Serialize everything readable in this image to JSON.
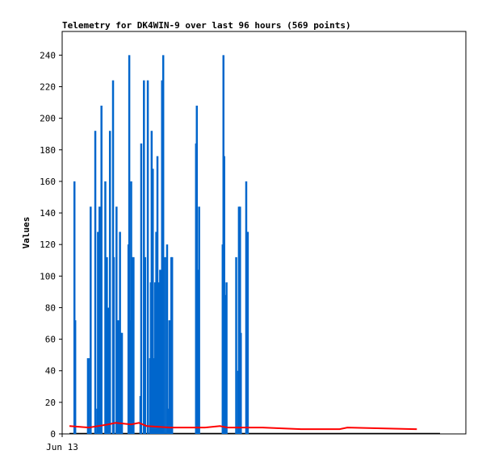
{
  "chart_data": {
    "type": "bar",
    "title": "Telemetry for DK4WIN-9 over last 96 hours (569 points)",
    "xlabel": "",
    "ylabel": "Values",
    "x_tick_labels": [
      "Jun 13"
    ],
    "x_range_hours": [
      0,
      96
    ],
    "ylim": [
      0,
      255
    ],
    "y_ticks": [
      0,
      20,
      40,
      60,
      80,
      100,
      120,
      140,
      160,
      180,
      200,
      220,
      240
    ],
    "grid": false,
    "legend": "none",
    "colors": {
      "spikes": "#0066cc",
      "baseline": "#ff0000",
      "zero_line": "#000000"
    },
    "series": [
      {
        "style": "bars",
        "x_hours": [
          1.3,
          1.5,
          4.8,
          5.3,
          5.5,
          6.7,
          7.2,
          7.4,
          7.6,
          7.8,
          8.0,
          8.3,
          9.3,
          9.5,
          9.7,
          9.9,
          10.1,
          10.5,
          11.3,
          11.5,
          12.2,
          12.6,
          13.1,
          13.4,
          13.6,
          15.3,
          15.5,
          15.7,
          16.0,
          16.4,
          16.6,
          18.4,
          18.6,
          19.3,
          19.6,
          20.3,
          20.9,
          21.1,
          21.3,
          21.6,
          22.0,
          22.2,
          22.5,
          22.8,
          23.0,
          23.2,
          23.5,
          24.0,
          24.3,
          24.8,
          25.3,
          25.7,
          25.9,
          26.2,
          26.4,
          26.6,
          32.8,
          33.0,
          33.3,
          33.6,
          39.7,
          39.9,
          40.1,
          40.5,
          40.7,
          43.2,
          43.7,
          43.9,
          44.2,
          44.4,
          45.8,
          46.0,
          46.2
        ],
        "values": [
          160,
          72,
          48,
          48,
          144,
          192,
          16,
          128,
          64,
          144,
          104,
          208,
          160,
          96,
          112,
          56,
          80,
          192,
          224,
          112,
          144,
          72,
          128,
          64,
          64,
          120,
          240,
          72,
          160,
          112,
          112,
          24,
          184,
          224,
          112,
          224,
          48,
          96,
          192,
          168,
          48,
          96,
          128,
          176,
          8,
          96,
          104,
          224,
          240,
          112,
          120,
          16,
          72,
          56,
          112,
          112,
          184,
          208,
          104,
          144,
          120,
          240,
          176,
          88,
          96,
          112,
          40,
          144,
          144,
          64,
          160,
          8,
          128
        ]
      },
      {
        "style": "line",
        "x_hours": [
          0,
          5,
          10,
          12,
          16,
          18,
          20,
          26,
          30,
          35,
          39,
          41,
          45,
          50,
          60,
          70,
          72,
          90
        ],
        "values": [
          5,
          4,
          6,
          7,
          6,
          7,
          5,
          4,
          4,
          4,
          5,
          4,
          4,
          4,
          3,
          3,
          4,
          3
        ]
      }
    ]
  }
}
